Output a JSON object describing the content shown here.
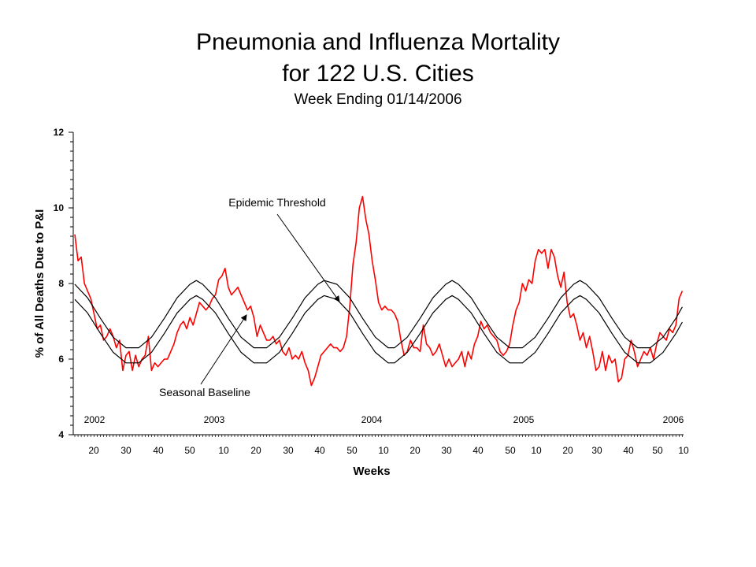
{
  "chart_data": {
    "type": "line",
    "title": "Pneumonia and Influenza Mortality",
    "subtitle": "for 122 U.S. Cities",
    "subtitle2": "Week Ending 01/14/2006",
    "xlabel": "Weeks",
    "ylabel": "% of All Deaths Due to P&I",
    "ylim": [
      4,
      12
    ],
    "y_ticks": [
      "4",
      "6",
      "8",
      "10",
      "12"
    ],
    "x_tick_labels": [
      "20",
      "30",
      "40",
      "50",
      "10",
      "20",
      "30",
      "40",
      "50",
      "10",
      "20",
      "30",
      "40",
      "50",
      "10",
      "20",
      "30",
      "40",
      "50",
      "10"
    ],
    "year_labels": [
      "2002",
      "2003",
      "2004",
      "2005",
      "2006"
    ],
    "annotations": [
      "Epidemic Threshold",
      "Seasonal Baseline"
    ],
    "colors": {
      "observed": "#ff0000",
      "threshold": "#000000",
      "baseline": "#000000"
    },
    "grid": false,
    "series": [
      {
        "key": "observed",
        "points": [
          [
            0,
            9.3
          ],
          [
            1,
            8.6
          ],
          [
            2,
            8.7
          ],
          [
            3,
            8.0
          ],
          [
            4,
            7.8
          ],
          [
            5,
            7.6
          ],
          [
            6,
            7.2
          ],
          [
            7,
            6.8
          ],
          [
            8,
            6.9
          ],
          [
            9,
            6.5
          ],
          [
            10,
            6.6
          ],
          [
            11,
            6.8
          ],
          [
            12,
            6.6
          ],
          [
            13,
            6.3
          ],
          [
            14,
            6.5
          ],
          [
            15,
            5.7
          ],
          [
            16,
            6.1
          ],
          [
            17,
            6.2
          ],
          [
            18,
            5.7
          ],
          [
            19,
            6.1
          ],
          [
            20,
            5.8
          ],
          [
            21,
            6.0
          ],
          [
            22,
            6.1
          ],
          [
            23,
            6.6
          ],
          [
            24,
            5.7
          ],
          [
            25,
            5.9
          ],
          [
            26,
            5.8
          ],
          [
            27,
            5.9
          ],
          [
            28,
            6.0
          ],
          [
            29,
            6.0
          ],
          [
            30,
            6.2
          ],
          [
            31,
            6.4
          ],
          [
            32,
            6.7
          ],
          [
            33,
            6.9
          ],
          [
            34,
            7.0
          ],
          [
            35,
            6.8
          ],
          [
            36,
            7.1
          ],
          [
            37,
            6.9
          ],
          [
            38,
            7.2
          ],
          [
            39,
            7.5
          ],
          [
            40,
            7.4
          ],
          [
            41,
            7.3
          ],
          [
            42,
            7.4
          ],
          [
            43,
            7.6
          ],
          [
            44,
            7.7
          ],
          [
            45,
            8.1
          ],
          [
            46,
            8.2
          ],
          [
            47,
            8.4
          ],
          [
            48,
            7.9
          ],
          [
            49,
            7.7
          ],
          [
            50,
            7.8
          ],
          [
            51,
            7.9
          ],
          [
            52,
            7.7
          ],
          [
            53,
            7.5
          ],
          [
            54,
            7.3
          ],
          [
            55,
            7.4
          ],
          [
            56,
            7.1
          ],
          [
            57,
            6.6
          ],
          [
            58,
            6.9
          ],
          [
            59,
            6.7
          ],
          [
            60,
            6.5
          ],
          [
            61,
            6.5
          ],
          [
            62,
            6.6
          ],
          [
            63,
            6.4
          ],
          [
            64,
            6.5
          ],
          [
            65,
            6.2
          ],
          [
            66,
            6.1
          ],
          [
            67,
            6.3
          ],
          [
            68,
            6.0
          ],
          [
            69,
            6.1
          ],
          [
            70,
            6.0
          ],
          [
            71,
            6.2
          ],
          [
            72,
            5.9
          ],
          [
            73,
            5.7
          ],
          [
            74,
            5.3
          ],
          [
            75,
            5.5
          ],
          [
            76,
            5.8
          ],
          [
            77,
            6.1
          ],
          [
            78,
            6.2
          ],
          [
            79,
            6.3
          ],
          [
            80,
            6.4
          ],
          [
            81,
            6.3
          ],
          [
            82,
            6.3
          ],
          [
            83,
            6.2
          ],
          [
            84,
            6.3
          ],
          [
            85,
            6.6
          ],
          [
            86,
            7.4
          ],
          [
            87,
            8.5
          ],
          [
            88,
            9.1
          ],
          [
            89,
            10.0
          ],
          [
            90,
            10.3
          ],
          [
            91,
            9.7
          ],
          [
            92,
            9.3
          ],
          [
            93,
            8.6
          ],
          [
            94,
            8.1
          ],
          [
            95,
            7.5
          ],
          [
            96,
            7.3
          ],
          [
            97,
            7.4
          ],
          [
            98,
            7.3
          ],
          [
            99,
            7.3
          ],
          [
            100,
            7.2
          ],
          [
            101,
            7.0
          ],
          [
            102,
            6.5
          ],
          [
            103,
            6.1
          ],
          [
            104,
            6.2
          ],
          [
            105,
            6.5
          ],
          [
            106,
            6.3
          ],
          [
            107,
            6.3
          ],
          [
            108,
            6.2
          ],
          [
            109,
            6.9
          ],
          [
            110,
            6.4
          ],
          [
            111,
            6.3
          ],
          [
            112,
            6.1
          ],
          [
            113,
            6.2
          ],
          [
            114,
            6.4
          ],
          [
            115,
            6.1
          ],
          [
            116,
            5.8
          ],
          [
            117,
            6.0
          ],
          [
            118,
            5.8
          ],
          [
            119,
            5.9
          ],
          [
            120,
            6.0
          ],
          [
            121,
            6.2
          ],
          [
            122,
            5.8
          ],
          [
            123,
            6.2
          ],
          [
            124,
            6.0
          ],
          [
            125,
            6.4
          ],
          [
            126,
            6.6
          ],
          [
            127,
            7.0
          ],
          [
            128,
            6.8
          ],
          [
            129,
            6.9
          ],
          [
            130,
            6.7
          ],
          [
            131,
            6.6
          ],
          [
            132,
            6.5
          ],
          [
            133,
            6.2
          ],
          [
            134,
            6.1
          ],
          [
            135,
            6.2
          ],
          [
            136,
            6.4
          ],
          [
            137,
            6.9
          ],
          [
            138,
            7.3
          ],
          [
            139,
            7.5
          ],
          [
            140,
            8.0
          ],
          [
            141,
            7.8
          ],
          [
            142,
            8.1
          ],
          [
            143,
            8.0
          ],
          [
            144,
            8.6
          ],
          [
            145,
            8.9
          ],
          [
            146,
            8.8
          ],
          [
            147,
            8.9
          ],
          [
            148,
            8.4
          ],
          [
            149,
            8.9
          ],
          [
            150,
            8.7
          ],
          [
            151,
            8.2
          ],
          [
            152,
            7.9
          ],
          [
            153,
            8.3
          ],
          [
            154,
            7.5
          ],
          [
            155,
            7.1
          ],
          [
            156,
            7.2
          ],
          [
            157,
            6.9
          ],
          [
            158,
            6.5
          ],
          [
            159,
            6.7
          ],
          [
            160,
            6.3
          ],
          [
            161,
            6.6
          ],
          [
            162,
            6.2
          ],
          [
            163,
            5.7
          ],
          [
            164,
            5.8
          ],
          [
            165,
            6.2
          ],
          [
            166,
            5.7
          ],
          [
            167,
            6.1
          ],
          [
            168,
            5.9
          ],
          [
            169,
            6.0
          ],
          [
            170,
            5.4
          ],
          [
            171,
            5.5
          ],
          [
            172,
            6.0
          ],
          [
            173,
            6.1
          ],
          [
            174,
            6.5
          ],
          [
            175,
            6.2
          ],
          [
            176,
            5.8
          ],
          [
            177,
            6.0
          ],
          [
            178,
            6.2
          ],
          [
            179,
            6.1
          ],
          [
            180,
            6.3
          ],
          [
            181,
            6.0
          ],
          [
            182,
            6.4
          ],
          [
            183,
            6.7
          ],
          [
            184,
            6.6
          ],
          [
            185,
            6.5
          ],
          [
            186,
            6.8
          ],
          [
            187,
            6.7
          ],
          [
            188,
            6.9
          ],
          [
            189,
            7.6
          ],
          [
            190,
            7.8
          ]
        ]
      },
      {
        "key": "threshold",
        "points": [
          [
            0,
            7.98
          ],
          [
            4,
            7.62
          ],
          [
            8,
            7.08
          ],
          [
            12,
            6.58
          ],
          [
            16,
            6.3
          ],
          [
            20,
            6.3
          ],
          [
            24,
            6.58
          ],
          [
            28,
            7.08
          ],
          [
            32,
            7.62
          ],
          [
            36,
            7.98
          ],
          [
            38,
            8.08
          ],
          [
            40,
            7.98
          ],
          [
            44,
            7.62
          ],
          [
            48,
            7.08
          ],
          [
            52,
            6.58
          ],
          [
            56,
            6.3
          ],
          [
            60,
            6.3
          ],
          [
            64,
            6.58
          ],
          [
            68,
            7.08
          ],
          [
            72,
            7.62
          ],
          [
            76,
            7.98
          ],
          [
            78,
            8.08
          ],
          [
            82,
            7.98
          ],
          [
            86,
            7.62
          ],
          [
            90,
            7.08
          ],
          [
            94,
            6.58
          ],
          [
            98,
            6.3
          ],
          [
            100,
            6.3
          ],
          [
            104,
            6.58
          ],
          [
            108,
            7.08
          ],
          [
            112,
            7.62
          ],
          [
            116,
            7.98
          ],
          [
            118,
            8.08
          ],
          [
            120,
            7.98
          ],
          [
            124,
            7.62
          ],
          [
            128,
            7.08
          ],
          [
            132,
            6.58
          ],
          [
            136,
            6.3
          ],
          [
            140,
            6.3
          ],
          [
            144,
            6.58
          ],
          [
            148,
            7.08
          ],
          [
            152,
            7.62
          ],
          [
            156,
            7.98
          ],
          [
            158,
            8.08
          ],
          [
            160,
            7.98
          ],
          [
            164,
            7.62
          ],
          [
            168,
            7.08
          ],
          [
            172,
            6.58
          ],
          [
            176,
            6.3
          ],
          [
            180,
            6.3
          ],
          [
            184,
            6.58
          ],
          [
            188,
            7.08
          ],
          [
            190,
            7.38
          ]
        ]
      },
      {
        "key": "baseline",
        "points": [
          [
            0,
            7.58
          ],
          [
            4,
            7.22
          ],
          [
            8,
            6.68
          ],
          [
            12,
            6.18
          ],
          [
            16,
            5.9
          ],
          [
            20,
            5.9
          ],
          [
            24,
            6.18
          ],
          [
            28,
            6.68
          ],
          [
            32,
            7.22
          ],
          [
            36,
            7.58
          ],
          [
            38,
            7.68
          ],
          [
            40,
            7.58
          ],
          [
            44,
            7.22
          ],
          [
            48,
            6.68
          ],
          [
            52,
            6.18
          ],
          [
            56,
            5.9
          ],
          [
            60,
            5.9
          ],
          [
            64,
            6.18
          ],
          [
            68,
            6.68
          ],
          [
            72,
            7.22
          ],
          [
            76,
            7.58
          ],
          [
            78,
            7.68
          ],
          [
            82,
            7.58
          ],
          [
            86,
            7.22
          ],
          [
            90,
            6.68
          ],
          [
            94,
            6.18
          ],
          [
            98,
            5.9
          ],
          [
            100,
            5.9
          ],
          [
            104,
            6.18
          ],
          [
            108,
            6.68
          ],
          [
            112,
            7.22
          ],
          [
            116,
            7.58
          ],
          [
            118,
            7.68
          ],
          [
            120,
            7.58
          ],
          [
            124,
            7.22
          ],
          [
            128,
            6.68
          ],
          [
            132,
            6.18
          ],
          [
            136,
            5.9
          ],
          [
            140,
            5.9
          ],
          [
            144,
            6.18
          ],
          [
            148,
            6.68
          ],
          [
            152,
            7.22
          ],
          [
            156,
            7.58
          ],
          [
            158,
            7.68
          ],
          [
            160,
            7.58
          ],
          [
            164,
            7.22
          ],
          [
            168,
            6.68
          ],
          [
            172,
            6.18
          ],
          [
            176,
            5.9
          ],
          [
            180,
            5.9
          ],
          [
            184,
            6.18
          ],
          [
            188,
            6.68
          ],
          [
            190,
            6.98
          ]
        ]
      }
    ]
  }
}
